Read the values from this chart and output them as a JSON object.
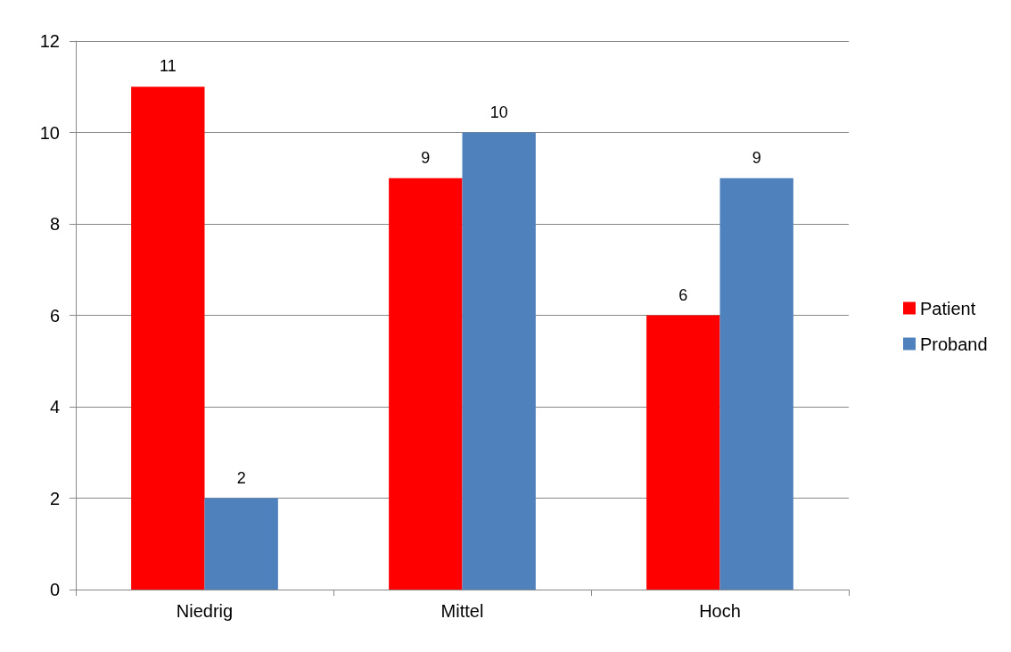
{
  "chart_data": {
    "type": "bar",
    "categories": [
      "Niedrig",
      "Mittel",
      "Hoch"
    ],
    "series": [
      {
        "name": "Patient",
        "color": "#ff0000",
        "values": [
          11,
          9,
          6
        ]
      },
      {
        "name": "Proband",
        "color": "#4f81bd",
        "values": [
          2,
          10,
          9
        ]
      }
    ],
    "ylim": [
      0,
      12
    ],
    "yticks": [
      0,
      2,
      4,
      6,
      8,
      10,
      12
    ],
    "grid": "y",
    "legend": "right",
    "data_labels": true
  }
}
